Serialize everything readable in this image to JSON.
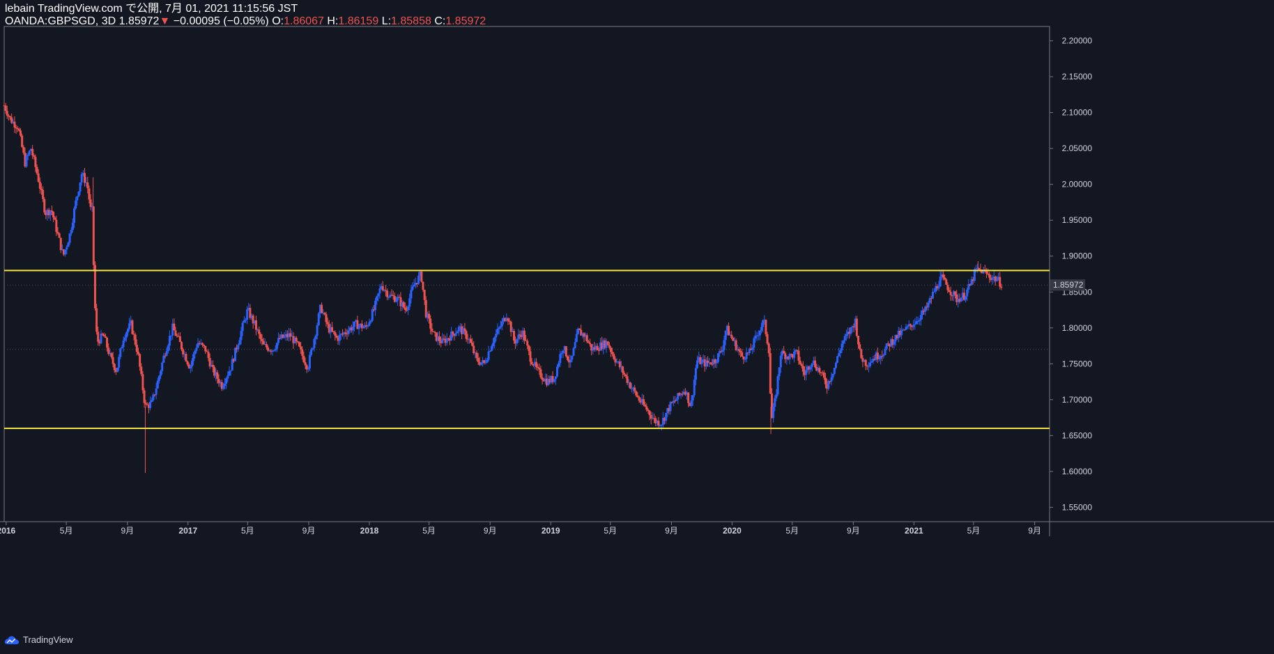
{
  "header": {
    "line1": "lebain TradingView.com で公開, 7月 01, 2021 11:15:56 JST",
    "symbol": "OANDA:GBPSGD, 3D",
    "last": "1.85972",
    "change_arrow": "▼",
    "change": "−0.00095 (−0.05%)",
    "o_label": "O:",
    "o_value": "1.86067",
    "h_label": "H:",
    "h_value": "1.86159",
    "l_label": "L:",
    "l_value": "1.85858",
    "c_label": "C:",
    "c_value": "1.85972"
  },
  "footer": {
    "logo_text": "TradingView",
    "logo_icon": "tradingview-cloud-icon"
  },
  "colors": {
    "background": "#131722",
    "up": "#2962ff",
    "down": "#ef5350",
    "level_line": "#f5e342",
    "axis_line": "#787b86",
    "text": "#d1d4dc"
  },
  "chart_data": {
    "type": "candlestick",
    "title": "",
    "symbol": "OANDA:GBPSGD",
    "interval": "3D",
    "ylim": [
      1.53,
      2.22
    ],
    "xlim": [
      "2015-12-28",
      "2021-10-01"
    ],
    "y_ticks": [
      "2.20000",
      "2.15000",
      "2.10000",
      "2.05000",
      "2.00000",
      "1.95000",
      "1.90000",
      "1.85000",
      "1.80000",
      "1.75000",
      "1.70000",
      "1.65000",
      "1.60000",
      "1.55000"
    ],
    "x_ticks": [
      {
        "label": "2016",
        "date": "2016-01-01",
        "bold": true
      },
      {
        "label": "5月",
        "date": "2016-05-01",
        "bold": false
      },
      {
        "label": "9月",
        "date": "2016-09-01",
        "bold": false
      },
      {
        "label": "2017",
        "date": "2017-01-01",
        "bold": true
      },
      {
        "label": "5月",
        "date": "2017-05-01",
        "bold": false
      },
      {
        "label": "9月",
        "date": "2017-09-01",
        "bold": false
      },
      {
        "label": "2018",
        "date": "2018-01-01",
        "bold": true
      },
      {
        "label": "5月",
        "date": "2018-05-01",
        "bold": false
      },
      {
        "label": "9月",
        "date": "2018-09-01",
        "bold": false
      },
      {
        "label": "2019",
        "date": "2019-01-01",
        "bold": true
      },
      {
        "label": "5月",
        "date": "2019-05-01",
        "bold": false
      },
      {
        "label": "9月",
        "date": "2019-09-01",
        "bold": false
      },
      {
        "label": "2020",
        "date": "2020-01-01",
        "bold": true
      },
      {
        "label": "5月",
        "date": "2020-05-01",
        "bold": false
      },
      {
        "label": "9月",
        "date": "2020-09-01",
        "bold": false
      },
      {
        "label": "2021",
        "date": "2021-01-01",
        "bold": true
      },
      {
        "label": "5月",
        "date": "2021-05-01",
        "bold": false
      },
      {
        "label": "9月",
        "date": "2021-09-01",
        "bold": false
      }
    ],
    "horizontal_levels": [
      1.88,
      1.66
    ],
    "last_price": 1.85972,
    "last_price_label": "1.85972",
    "mid_dotted_level": 1.77,
    "close_path": [
      [
        "2015-12-28",
        2.11
      ],
      [
        "2016-01-10",
        2.09
      ],
      [
        "2016-01-25",
        2.08
      ],
      [
        "2016-02-08",
        2.03
      ],
      [
        "2016-02-20",
        2.05
      ],
      [
        "2016-03-05",
        2.01
      ],
      [
        "2016-03-20",
        1.96
      ],
      [
        "2016-04-01",
        1.965
      ],
      [
        "2016-04-12",
        1.935
      ],
      [
        "2016-04-25",
        1.9
      ],
      [
        "2016-05-08",
        1.93
      ],
      [
        "2016-05-20",
        1.975
      ],
      [
        "2016-06-01",
        2.015
      ],
      [
        "2016-06-12",
        2.0
      ],
      [
        "2016-06-20",
        1.96
      ],
      [
        "2016-06-23",
        1.965
      ],
      [
        "2016-06-26",
        1.85
      ],
      [
        "2016-07-02",
        1.78
      ],
      [
        "2016-07-15",
        1.79
      ],
      [
        "2016-07-28",
        1.76
      ],
      [
        "2016-08-10",
        1.74
      ],
      [
        "2016-08-25",
        1.79
      ],
      [
        "2016-09-08",
        1.805
      ],
      [
        "2016-09-22",
        1.765
      ],
      [
        "2016-10-07",
        1.69
      ],
      [
        "2016-10-20",
        1.695
      ],
      [
        "2016-11-01",
        1.725
      ],
      [
        "2016-11-15",
        1.765
      ],
      [
        "2016-12-01",
        1.8
      ],
      [
        "2016-12-15",
        1.78
      ],
      [
        "2017-01-05",
        1.745
      ],
      [
        "2017-01-20",
        1.78
      ],
      [
        "2017-02-05",
        1.77
      ],
      [
        "2017-02-20",
        1.74
      ],
      [
        "2017-03-10",
        1.72
      ],
      [
        "2017-03-28",
        1.745
      ],
      [
        "2017-04-18",
        1.795
      ],
      [
        "2017-05-01",
        1.825
      ],
      [
        "2017-05-15",
        1.805
      ],
      [
        "2017-06-01",
        1.775
      ],
      [
        "2017-06-20",
        1.77
      ],
      [
        "2017-07-05",
        1.785
      ],
      [
        "2017-07-25",
        1.79
      ],
      [
        "2017-08-10",
        1.775
      ],
      [
        "2017-08-30",
        1.745
      ],
      [
        "2017-09-15",
        1.795
      ],
      [
        "2017-09-25",
        1.83
      ],
      [
        "2017-10-10",
        1.8
      ],
      [
        "2017-10-28",
        1.785
      ],
      [
        "2017-11-15",
        1.795
      ],
      [
        "2017-12-05",
        1.805
      ],
      [
        "2017-12-25",
        1.8
      ],
      [
        "2018-01-10",
        1.825
      ],
      [
        "2018-01-25",
        1.86
      ],
      [
        "2018-02-10",
        1.845
      ],
      [
        "2018-02-28",
        1.84
      ],
      [
        "2018-03-15",
        1.825
      ],
      [
        "2018-04-01",
        1.86
      ],
      [
        "2018-04-15",
        1.875
      ],
      [
        "2018-04-25",
        1.82
      ],
      [
        "2018-05-10",
        1.79
      ],
      [
        "2018-05-28",
        1.78
      ],
      [
        "2018-06-15",
        1.79
      ],
      [
        "2018-07-01",
        1.8
      ],
      [
        "2018-07-20",
        1.785
      ],
      [
        "2018-08-05",
        1.755
      ],
      [
        "2018-08-20",
        1.75
      ],
      [
        "2018-09-05",
        1.78
      ],
      [
        "2018-09-20",
        1.8
      ],
      [
        "2018-10-05",
        1.82
      ],
      [
        "2018-10-20",
        1.78
      ],
      [
        "2018-11-05",
        1.795
      ],
      [
        "2018-11-20",
        1.76
      ],
      [
        "2018-12-05",
        1.74
      ],
      [
        "2018-12-25",
        1.725
      ],
      [
        "2019-01-08",
        1.73
      ],
      [
        "2019-01-25",
        1.775
      ],
      [
        "2019-02-10",
        1.75
      ],
      [
        "2019-02-25",
        1.795
      ],
      [
        "2019-03-10",
        1.79
      ],
      [
        "2019-03-25",
        1.77
      ],
      [
        "2019-04-10",
        1.775
      ],
      [
        "2019-04-25",
        1.78
      ],
      [
        "2019-05-08",
        1.76
      ],
      [
        "2019-05-25",
        1.74
      ],
      [
        "2019-06-10",
        1.72
      ],
      [
        "2019-06-28",
        1.7
      ],
      [
        "2019-07-15",
        1.685
      ],
      [
        "2019-07-30",
        1.67
      ],
      [
        "2019-08-12",
        1.668
      ],
      [
        "2019-08-28",
        1.69
      ],
      [
        "2019-09-10",
        1.7
      ],
      [
        "2019-09-28",
        1.715
      ],
      [
        "2019-10-10",
        1.69
      ],
      [
        "2019-10-22",
        1.755
      ],
      [
        "2019-11-10",
        1.75
      ],
      [
        "2019-11-28",
        1.755
      ],
      [
        "2019-12-12",
        1.77
      ],
      [
        "2019-12-20",
        1.8
      ],
      [
        "2020-01-05",
        1.78
      ],
      [
        "2020-01-20",
        1.76
      ],
      [
        "2020-02-05",
        1.765
      ],
      [
        "2020-02-20",
        1.79
      ],
      [
        "2020-03-05",
        1.81
      ],
      [
        "2020-03-15",
        1.77
      ],
      [
        "2020-03-20",
        1.67
      ],
      [
        "2020-03-28",
        1.7
      ],
      [
        "2020-04-08",
        1.765
      ],
      [
        "2020-04-25",
        1.76
      ],
      [
        "2020-05-10",
        1.765
      ],
      [
        "2020-05-25",
        1.735
      ],
      [
        "2020-06-10",
        1.755
      ],
      [
        "2020-06-25",
        1.74
      ],
      [
        "2020-07-10",
        1.72
      ],
      [
        "2020-07-25",
        1.745
      ],
      [
        "2020-08-10",
        1.78
      ],
      [
        "2020-08-25",
        1.795
      ],
      [
        "2020-09-05",
        1.81
      ],
      [
        "2020-09-15",
        1.76
      ],
      [
        "2020-09-28",
        1.75
      ],
      [
        "2020-10-15",
        1.76
      ],
      [
        "2020-10-30",
        1.765
      ],
      [
        "2020-11-15",
        1.78
      ],
      [
        "2020-12-01",
        1.79
      ],
      [
        "2020-12-20",
        1.8
      ],
      [
        "2021-01-05",
        1.81
      ],
      [
        "2021-01-25",
        1.825
      ],
      [
        "2021-02-10",
        1.85
      ],
      [
        "2021-02-25",
        1.87
      ],
      [
        "2021-03-12",
        1.855
      ],
      [
        "2021-03-28",
        1.84
      ],
      [
        "2021-04-12",
        1.845
      ],
      [
        "2021-04-25",
        1.86
      ],
      [
        "2021-05-05",
        1.88
      ],
      [
        "2021-05-18",
        1.88
      ],
      [
        "2021-06-02",
        1.872
      ],
      [
        "2021-06-16",
        1.868
      ],
      [
        "2021-06-28",
        1.86
      ]
    ],
    "spike_wicks": [
      {
        "date": "2016-10-07",
        "low": 1.598
      },
      {
        "date": "2016-06-24",
        "high": 2.01
      },
      {
        "date": "2020-03-19",
        "low": 1.652
      },
      {
        "date": "2021-05-10",
        "high": 1.893
      }
    ]
  }
}
